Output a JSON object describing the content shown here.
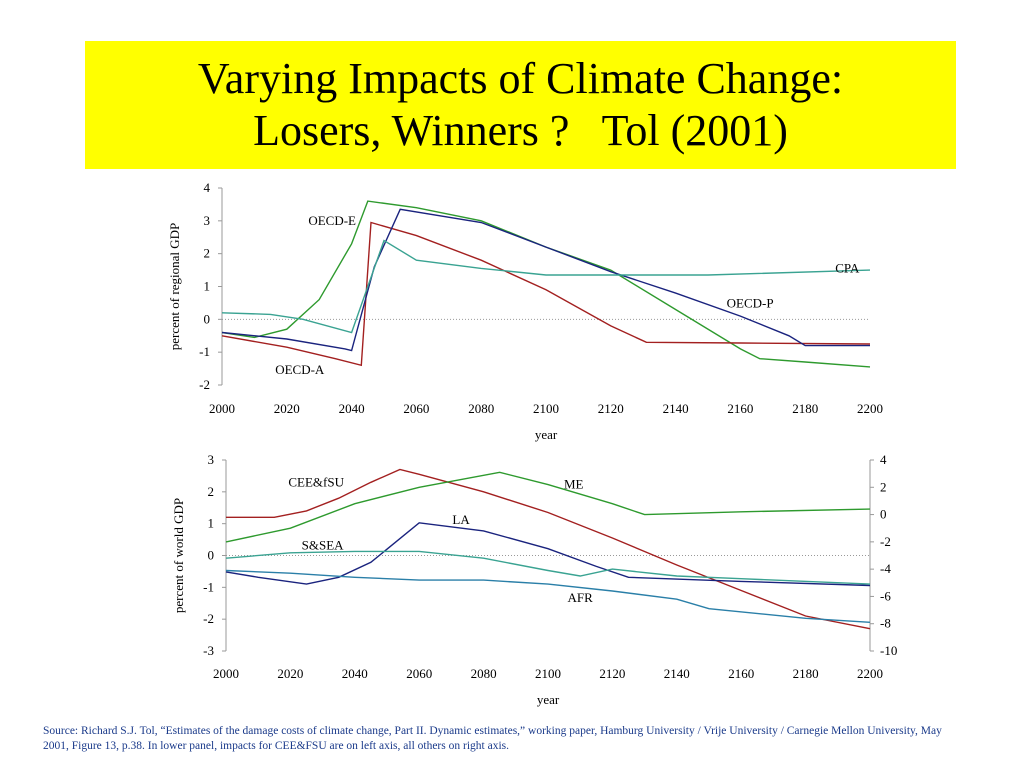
{
  "slide": {
    "title_line1": "Varying Impacts of Climate Change:",
    "title_line2": "Losers, Winners ?   Tol (2001)",
    "source": "Source:  Richard S.J. Tol, “Estimates of the damage costs of climate change, Part II. Dynamic estimates,” working paper, Hamburg University / Vrije University / Carnegie Mellon University, May 2001, Figure 13, p.38.   In lower panel, impacts for CEE&FSU are on left axis, all others on right axis."
  },
  "chart_data": [
    {
      "type": "line",
      "title": "",
      "xlabel": "year",
      "ylabel": "percent of regional GDP",
      "xlim": [
        2000,
        2200
      ],
      "ylim": [
        -2,
        4
      ],
      "x_ticks": [
        2000,
        2020,
        2040,
        2060,
        2080,
        2100,
        2120,
        2140,
        2160,
        2180,
        2200
      ],
      "y_ticks": [
        -2,
        -1,
        0,
        1,
        2,
        3,
        4
      ],
      "series": [
        {
          "name": "OECD-E",
          "color": "#2e9a2e",
          "label_at": [
            2034,
            3.0
          ],
          "points": [
            [
              2000,
              -0.4
            ],
            [
              2010,
              -0.55
            ],
            [
              2020,
              -0.3
            ],
            [
              2030,
              0.6
            ],
            [
              2040,
              2.3
            ],
            [
              2045,
              3.6
            ],
            [
              2060,
              3.4
            ],
            [
              2080,
              3.0
            ],
            [
              2100,
              2.2
            ],
            [
              2120,
              1.5
            ],
            [
              2140,
              0.3
            ],
            [
              2160,
              -0.9
            ],
            [
              2166,
              -1.2
            ],
            [
              2180,
              -1.3
            ],
            [
              2200,
              -1.45
            ]
          ]
        },
        {
          "name": "OECD-A",
          "color": "#a32020",
          "label_at": [
            2024,
            -1.55
          ],
          "points": [
            [
              2000,
              -0.5
            ],
            [
              2020,
              -0.85
            ],
            [
              2035,
              -1.2
            ],
            [
              2043,
              -1.4
            ],
            [
              2046,
              2.95
            ],
            [
              2060,
              2.55
            ],
            [
              2080,
              1.8
            ],
            [
              2100,
              0.9
            ],
            [
              2120,
              -0.2
            ],
            [
              2131,
              -0.7
            ],
            [
              2160,
              -0.72
            ],
            [
              2200,
              -0.75
            ]
          ]
        },
        {
          "name": "OECD-P",
          "color": "#1a237e",
          "label_at": [
            2163,
            0.48
          ],
          "points": [
            [
              2000,
              -0.4
            ],
            [
              2020,
              -0.6
            ],
            [
              2038,
              -0.9
            ],
            [
              2040,
              -0.95
            ],
            [
              2047,
              1.6
            ],
            [
              2055,
              3.35
            ],
            [
              2080,
              2.95
            ],
            [
              2100,
              2.2
            ],
            [
              2120,
              1.45
            ],
            [
              2140,
              0.8
            ],
            [
              2160,
              0.1
            ],
            [
              2175,
              -0.5
            ],
            [
              2180,
              -0.8
            ],
            [
              2200,
              -0.8
            ]
          ]
        },
        {
          "name": "CPA",
          "color": "#3aa392",
          "label_at": [
            2193,
            1.55
          ],
          "points": [
            [
              2000,
              0.2
            ],
            [
              2015,
              0.15
            ],
            [
              2025,
              0.0
            ],
            [
              2040,
              -0.4
            ],
            [
              2050,
              2.4
            ],
            [
              2060,
              1.8
            ],
            [
              2080,
              1.55
            ],
            [
              2100,
              1.35
            ],
            [
              2150,
              1.35
            ],
            [
              2200,
              1.5
            ]
          ]
        }
      ]
    },
    {
      "type": "line",
      "title": "",
      "xlabel": "year",
      "ylabel": "percent of world GDP",
      "xlim": [
        2000,
        2200
      ],
      "ylim": [
        -3,
        3
      ],
      "y2lim": [
        -10,
        4
      ],
      "x_ticks": [
        2000,
        2020,
        2040,
        2060,
        2080,
        2100,
        2120,
        2140,
        2160,
        2180,
        2200
      ],
      "y_ticks": [
        -3,
        -2,
        -1,
        0,
        1,
        2,
        3
      ],
      "y2_ticks": [
        -10,
        -8,
        -6,
        -4,
        -2,
        0,
        2,
        4
      ],
      "series": [
        {
          "name": "CEE&fSU",
          "color": "#a32020",
          "axis": "left",
          "label_at": [
            2028,
            2.3
          ],
          "points": [
            [
              2000,
              1.2
            ],
            [
              2015,
              1.2
            ],
            [
              2025,
              1.4
            ],
            [
              2035,
              1.8
            ],
            [
              2045,
              2.3
            ],
            [
              2054,
              2.7
            ],
            [
              2060,
              2.55
            ],
            [
              2080,
              2.0
            ],
            [
              2100,
              1.35
            ],
            [
              2120,
              0.55
            ],
            [
              2140,
              -0.3
            ],
            [
              2160,
              -1.1
            ],
            [
              2180,
              -1.9
            ],
            [
              2200,
              -2.3
            ]
          ]
        },
        {
          "name": "ME",
          "color": "#2e9a2e",
          "axis": "right",
          "label_at": [
            2108,
            2.2
          ],
          "points": [
            [
              2000,
              -2.0
            ],
            [
              2020,
              -1.0
            ],
            [
              2040,
              0.8
            ],
            [
              2060,
              2.0
            ],
            [
              2085,
              3.1
            ],
            [
              2100,
              2.2
            ],
            [
              2120,
              0.8
            ],
            [
              2130,
              0.0
            ],
            [
              2160,
              0.2
            ],
            [
              2200,
              0.4
            ]
          ]
        },
        {
          "name": "LA",
          "color": "#1a237e",
          "axis": "right",
          "label_at": [
            2073,
            -0.4
          ],
          "points": [
            [
              2000,
              -4.2
            ],
            [
              2010,
              -4.6
            ],
            [
              2025,
              -5.1
            ],
            [
              2035,
              -4.6
            ],
            [
              2045,
              -3.5
            ],
            [
              2060,
              -0.6
            ],
            [
              2080,
              -1.2
            ],
            [
              2100,
              -2.5
            ],
            [
              2115,
              -3.8
            ],
            [
              2125,
              -4.6
            ],
            [
              2160,
              -4.9
            ],
            [
              2200,
              -5.2
            ]
          ]
        },
        {
          "name": "S&SEA",
          "color": "#3aa392",
          "axis": "right",
          "label_at": [
            2030,
            -2.25
          ],
          "points": [
            [
              2000,
              -3.2
            ],
            [
              2020,
              -2.8
            ],
            [
              2040,
              -2.7
            ],
            [
              2060,
              -2.7
            ],
            [
              2080,
              -3.2
            ],
            [
              2100,
              -4.1
            ],
            [
              2110,
              -4.5
            ],
            [
              2120,
              -4.0
            ],
            [
              2140,
              -4.5
            ],
            [
              2160,
              -4.7
            ],
            [
              2200,
              -5.1
            ]
          ]
        },
        {
          "name": "AFR",
          "color": "#2a7fa8",
          "axis": "right",
          "label_at": [
            2110,
            -6.1
          ],
          "points": [
            [
              2000,
              -4.1
            ],
            [
              2020,
              -4.3
            ],
            [
              2040,
              -4.6
            ],
            [
              2060,
              -4.8
            ],
            [
              2080,
              -4.8
            ],
            [
              2100,
              -5.1
            ],
            [
              2120,
              -5.6
            ],
            [
              2140,
              -6.2
            ],
            [
              2150,
              -6.9
            ],
            [
              2180,
              -7.6
            ],
            [
              2200,
              -7.9
            ]
          ]
        }
      ]
    }
  ]
}
